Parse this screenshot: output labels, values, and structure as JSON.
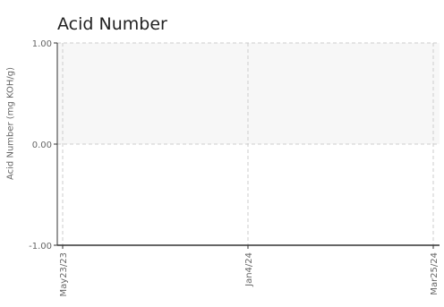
{
  "header": {
    "title": "Acid Number",
    "clipped_left": "N",
    "clipped_right": "N"
  },
  "chart_data": {
    "type": "line",
    "title": "Acid Number",
    "xlabel": "",
    "ylabel": "Acid Number (mg KOH/g)",
    "ylim": [
      -1.0,
      1.0
    ],
    "yticks": [
      "1.00",
      "0.00",
      "-1.00"
    ],
    "ytick_values": [
      1.0,
      0.0,
      -1.0
    ],
    "x_categories": [
      "May23/23",
      "Jan4/24",
      "Mar25/24"
    ],
    "grid": true,
    "band": {
      "from": 0.0,
      "to": 1.0,
      "color": "#f7f7f7"
    },
    "series": []
  },
  "colors": {
    "axis": "#333333",
    "grid": "#cccccc",
    "band": "#f7f7f7",
    "text": "#666666"
  }
}
